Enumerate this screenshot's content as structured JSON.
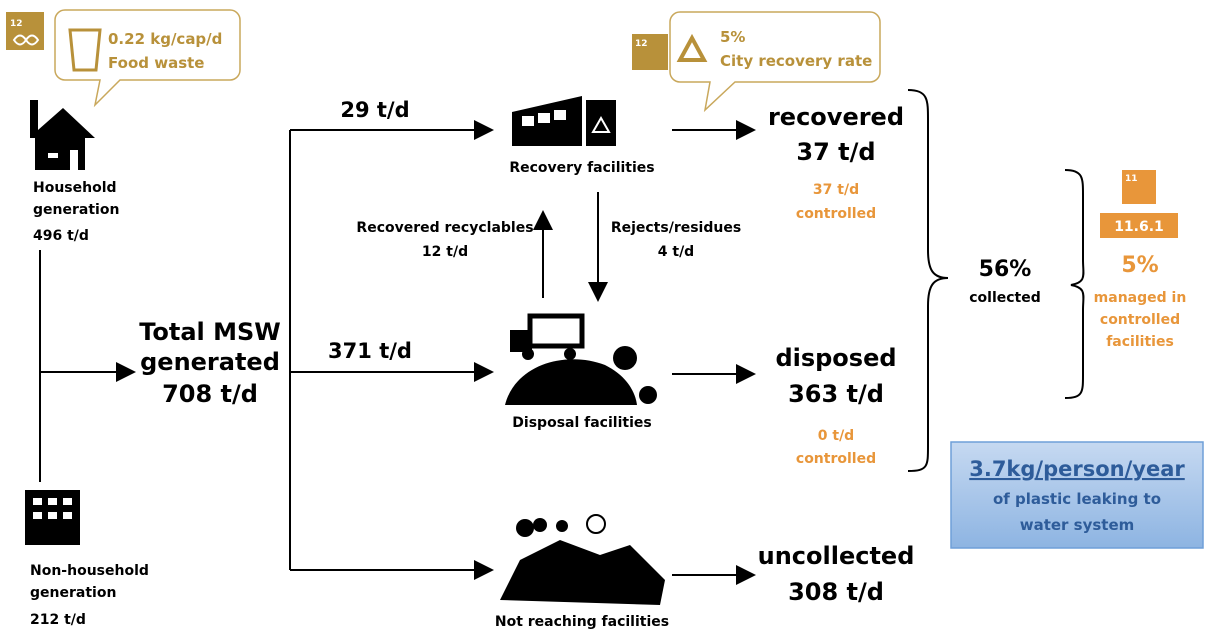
{
  "callouts": [
    {
      "badge": "12",
      "lines": [
        "0.22 kg/cap/d",
        "Food waste"
      ]
    },
    {
      "badge": "12",
      "lines": [
        "5%",
        "City recovery rate"
      ]
    }
  ],
  "sources": [
    {
      "lines": [
        "Household",
        "generation"
      ],
      "value": "496 t/d"
    },
    {
      "lines": [
        "Non-household",
        "generation"
      ],
      "value": "212 t/d"
    }
  ],
  "total": {
    "lines": [
      "Total MSW",
      "generated"
    ],
    "value": "708 t/d"
  },
  "flows": [
    "29 t/d",
    "371 t/d"
  ],
  "facilities": [
    "Recovery facilities",
    "Disposal facilities",
    "Not reaching facilities"
  ],
  "exchange": [
    {
      "label": "Recovered recyclables",
      "value": "12 t/d"
    },
    {
      "label": "Rejects/residues",
      "value": "4 t/d"
    }
  ],
  "outcomes": [
    {
      "label": "recovered",
      "value": "37 t/d",
      "controlled": [
        "37 t/d",
        "controlled"
      ]
    },
    {
      "label": "disposed",
      "value": "363 t/d",
      "controlled": [
        "0 t/d",
        "controlled"
      ]
    },
    {
      "label": "uncollected",
      "value": "308 t/d"
    }
  ],
  "collected": {
    "value": "56%",
    "label": "collected"
  },
  "indicator": {
    "badge": "11",
    "code": "11.6.1",
    "value": "5%",
    "lines": [
      "managed in",
      "controlled",
      "facilities"
    ]
  },
  "plastic": {
    "value": "3.7kg/person/year",
    "lines": [
      "of plastic leaking to",
      "water system"
    ]
  }
}
